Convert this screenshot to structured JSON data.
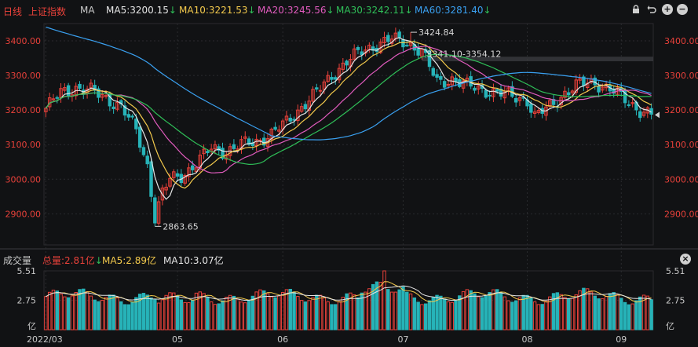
{
  "header": {
    "period_label": "日线",
    "index_name": "上证指数",
    "indicator_label": "MA",
    "ma_items": [
      {
        "label": "MA5:3200.15",
        "arrow": "↓",
        "color": "#e6e6e6"
      },
      {
        "label": "MA10:3221.53",
        "arrow": "↓",
        "color": "#f2c94c"
      },
      {
        "label": "MA20:3245.56",
        "arrow": "↓",
        "color": "#e05bbd"
      },
      {
        "label": "MA30:3242.11",
        "arrow": "↓",
        "color": "#2fbf58"
      },
      {
        "label": "MA60:3281.40",
        "arrow": "↓",
        "color": "#3aa0f0"
      }
    ],
    "controls": [
      "lock-icon",
      "undo-icon",
      "zoom-in-icon",
      "zoom-out-icon",
      "close-icon"
    ]
  },
  "volume_header": {
    "title": "成交量",
    "total": "总量:2.81亿",
    "total_arrow": "↓",
    "ma5": "MA5:2.89亿",
    "ma10": "MA10:3.07亿"
  },
  "colors": {
    "up": "#e8413a",
    "down": "#27b3b8",
    "background": "#111214",
    "grid": "#2a2b2e",
    "axis_text_price": "#e8413a",
    "axis_text_volume": "#c9c9c9"
  },
  "chart_data": [
    {
      "type": "candlestick",
      "title": "上证指数 日线",
      "ylim": [
        2810,
        3450
      ],
      "yticks": [
        "3400.00",
        "3300.00",
        "3200.00",
        "3100.00",
        "3000.00",
        "2900.00"
      ],
      "ytick_values": [
        3400,
        3300,
        3200,
        3100,
        3000,
        2900
      ],
      "x_tick_labels": [
        "2022/03",
        "05",
        "06",
        "07",
        "08",
        "09"
      ],
      "x_tick_day_index": [
        0,
        35,
        63,
        95,
        128,
        153
      ],
      "annotations": [
        {
          "text": "3424.84",
          "day": 97,
          "price": 3424.84,
          "side": "right"
        },
        {
          "text": "2863.65",
          "day": 29,
          "price": 2863.65,
          "side": "right"
        },
        {
          "text": "3341.10-3354.12",
          "day": 100,
          "price": 3347,
          "side": "band"
        }
      ],
      "gap_band": {
        "low": 3341.1,
        "high": 3354.12
      },
      "last_price_marker": 3186,
      "anchor_closes": [
        [
          0,
          3205
        ],
        [
          4,
          3250
        ],
        [
          8,
          3265
        ],
        [
          12,
          3255
        ],
        [
          16,
          3235
        ],
        [
          20,
          3210
        ],
        [
          24,
          3140
        ],
        [
          27,
          3040
        ],
        [
          29,
          2890
        ],
        [
          31,
          2960
        ],
        [
          33,
          3000
        ],
        [
          36,
          3010
        ],
        [
          40,
          3045
        ],
        [
          44,
          3090
        ],
        [
          48,
          3080
        ],
        [
          52,
          3100
        ],
        [
          56,
          3110
        ],
        [
          60,
          3130
        ],
        [
          64,
          3165
        ],
        [
          68,
          3210
        ],
        [
          72,
          3250
        ],
        [
          76,
          3300
        ],
        [
          80,
          3340
        ],
        [
          84,
          3370
        ],
        [
          88,
          3390
        ],
        [
          92,
          3405
        ],
        [
          96,
          3395
        ],
        [
          100,
          3370
        ],
        [
          104,
          3280
        ],
        [
          108,
          3290
        ],
        [
          112,
          3270
        ],
        [
          116,
          3260
        ],
        [
          120,
          3250
        ],
        [
          124,
          3240
        ],
        [
          128,
          3230
        ],
        [
          130,
          3180
        ],
        [
          134,
          3210
        ],
        [
          138,
          3250
        ],
        [
          142,
          3275
        ],
        [
          146,
          3280
        ],
        [
          150,
          3260
        ],
        [
          154,
          3230
        ],
        [
          158,
          3200
        ],
        [
          161,
          3186
        ]
      ],
      "ma_series": [
        {
          "name": "MA5",
          "window": 5,
          "color": "#e6e6e6"
        },
        {
          "name": "MA10",
          "window": 10,
          "color": "#f2c94c"
        },
        {
          "name": "MA20",
          "window": 20,
          "color": "#e05bbd"
        },
        {
          "name": "MA30",
          "window": 30,
          "color": "#2fbf58"
        },
        {
          "name": "MA60",
          "window": 60,
          "color": "#3aa0f0",
          "prefill_start": 3440
        }
      ]
    },
    {
      "type": "bar",
      "title": "成交量",
      "unit": "亿",
      "ylim": [
        0,
        5.51
      ],
      "yticks": [
        "5.51",
        "2.75",
        "亿"
      ],
      "ytick_values": [
        5.51,
        2.75,
        0
      ],
      "peak_volume": 5.51,
      "last_volume": 2.81,
      "ma_series": [
        {
          "name": "MA5",
          "value": 2.89,
          "color": "#f2c94c"
        },
        {
          "name": "MA10",
          "value": 3.07,
          "color": "#e6e6e6"
        }
      ]
    }
  ]
}
